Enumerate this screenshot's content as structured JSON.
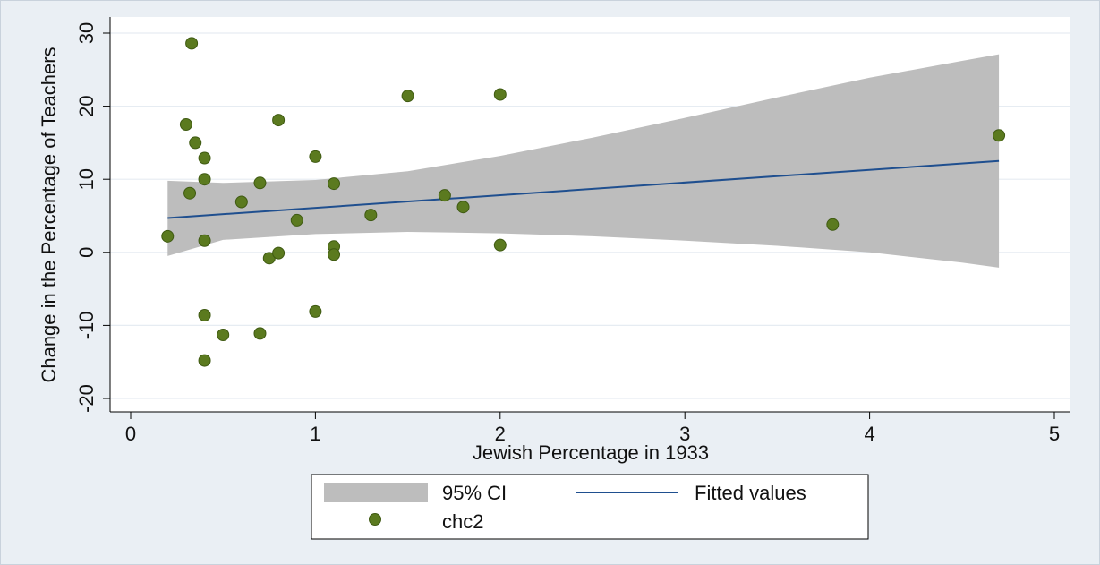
{
  "chart_data": {
    "type": "scatter",
    "xlabel": "Jewish Percentage in 1933",
    "ylabel": "Change in the Percentage of Teachers",
    "xlim": [
      0,
      5
    ],
    "ylim": [
      -20,
      30
    ],
    "xticks": [
      "0",
      "1",
      "2",
      "3",
      "4",
      "5"
    ],
    "yticks": [
      "-20",
      "-10",
      "0",
      "10",
      "20",
      "30"
    ],
    "grid": true,
    "legend": {
      "position": "bottom",
      "entries": [
        "95% CI",
        "Fitted values",
        "chc2"
      ]
    },
    "colors": {
      "points": "#5b7a1f",
      "point_edge": "#3f5a12",
      "fit_line": "#1f4f8f",
      "ci_band": "#bdbdbd",
      "plot_bg": "#ffffff",
      "grid": "#e6ecf2"
    },
    "series": [
      {
        "name": "chc2",
        "kind": "scatter",
        "x": [
          0.2,
          0.3,
          0.32,
          0.33,
          0.35,
          0.4,
          0.4,
          0.4,
          0.4,
          0.4,
          0.5,
          0.6,
          0.7,
          0.7,
          0.75,
          0.8,
          0.8,
          0.9,
          1.0,
          1.0,
          1.1,
          1.1,
          1.1,
          1.3,
          1.5,
          1.7,
          1.8,
          2.0,
          2.0,
          3.8,
          4.7
        ],
        "y": [
          2.2,
          17.5,
          8.1,
          28.6,
          15.0,
          12.9,
          10.0,
          1.6,
          -8.6,
          -14.8,
          -11.3,
          6.9,
          9.5,
          -11.1,
          -0.8,
          18.1,
          -0.1,
          4.4,
          13.1,
          -8.1,
          9.4,
          0.8,
          -0.3,
          5.1,
          21.4,
          7.8,
          6.2,
          21.6,
          1.0,
          3.8,
          16.0
        ]
      },
      {
        "name": "Fitted values",
        "kind": "line",
        "x": [
          0.2,
          4.7
        ],
        "y": [
          4.7,
          12.5
        ]
      },
      {
        "name": "95% CI",
        "kind": "band",
        "x": [
          0.2,
          0.5,
          1.0,
          1.5,
          2.0,
          2.5,
          3.0,
          3.5,
          4.0,
          4.5,
          4.7
        ],
        "lower": [
          -0.5,
          1.7,
          2.5,
          2.8,
          2.6,
          2.2,
          1.6,
          0.9,
          0.0,
          -1.4,
          -2.1
        ],
        "upper": [
          9.8,
          9.5,
          9.9,
          11.1,
          13.2,
          15.7,
          18.4,
          21.2,
          23.9,
          26.2,
          27.1
        ]
      }
    ]
  }
}
